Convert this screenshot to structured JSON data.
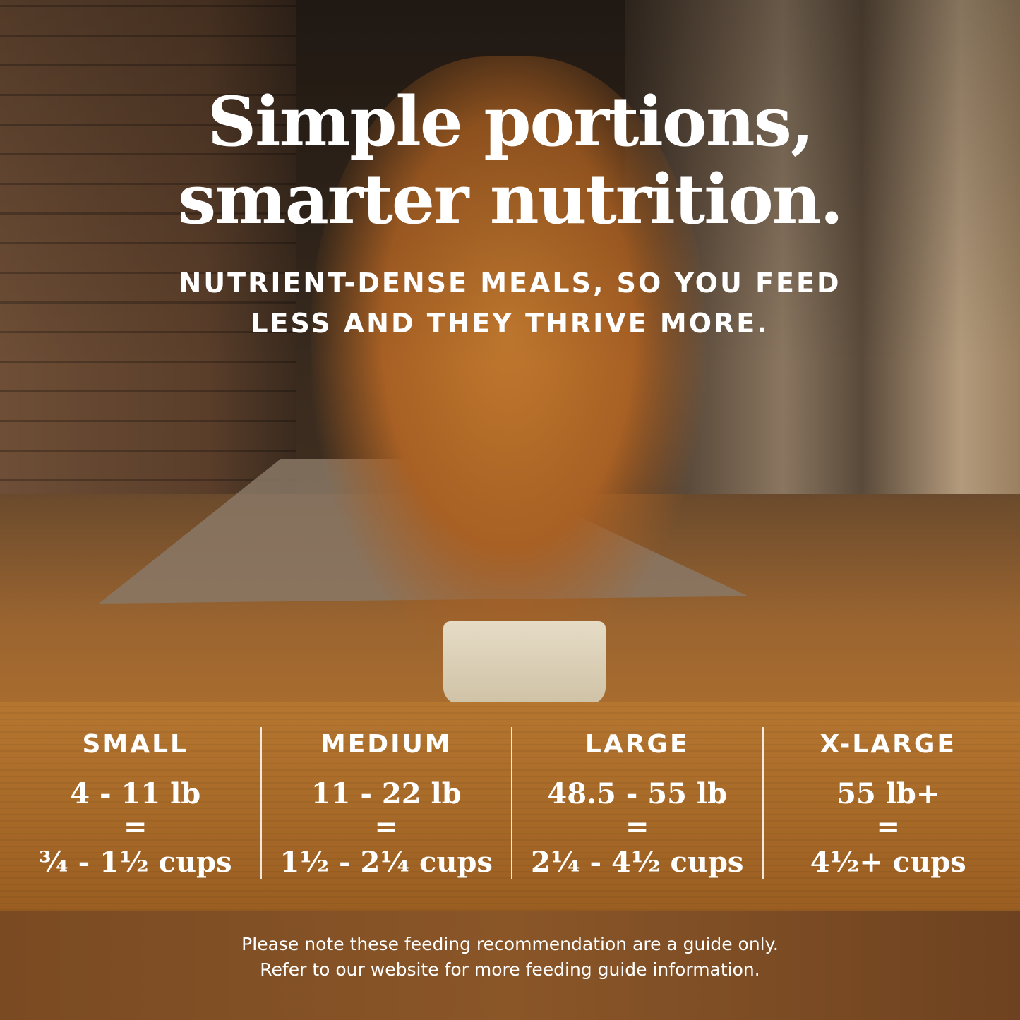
{
  "headline": {
    "line1": "Simple portions,",
    "line2": "smarter nutrition."
  },
  "subheadline": {
    "line1": "NUTRIENT-DENSE MEALS, SO YOU FEED",
    "line2": "LESS AND THEY THRIVE MORE."
  },
  "sizes": [
    {
      "label": "SMALL",
      "weight": "4 - 11 lb",
      "equals": "=",
      "cups": "¾ - 1½ cups"
    },
    {
      "label": "MEDIUM",
      "weight": "11 - 22 lb",
      "equals": "=",
      "cups": "1½ - 2¼ cups"
    },
    {
      "label": "LARGE",
      "weight": "48.5 - 55 lb",
      "equals": "=",
      "cups": "2¼ - 4½ cups"
    },
    {
      "label": "X-LARGE",
      "weight": "55 lb+",
      "equals": "=",
      "cups": "4½+ cups"
    }
  ],
  "note": {
    "line1": "Please note these feeding recommendation are a guide only.",
    "line2": "Refer to our website for more feeding guide information."
  },
  "colors": {
    "text": "#ffffff",
    "wood": "#b57630"
  }
}
